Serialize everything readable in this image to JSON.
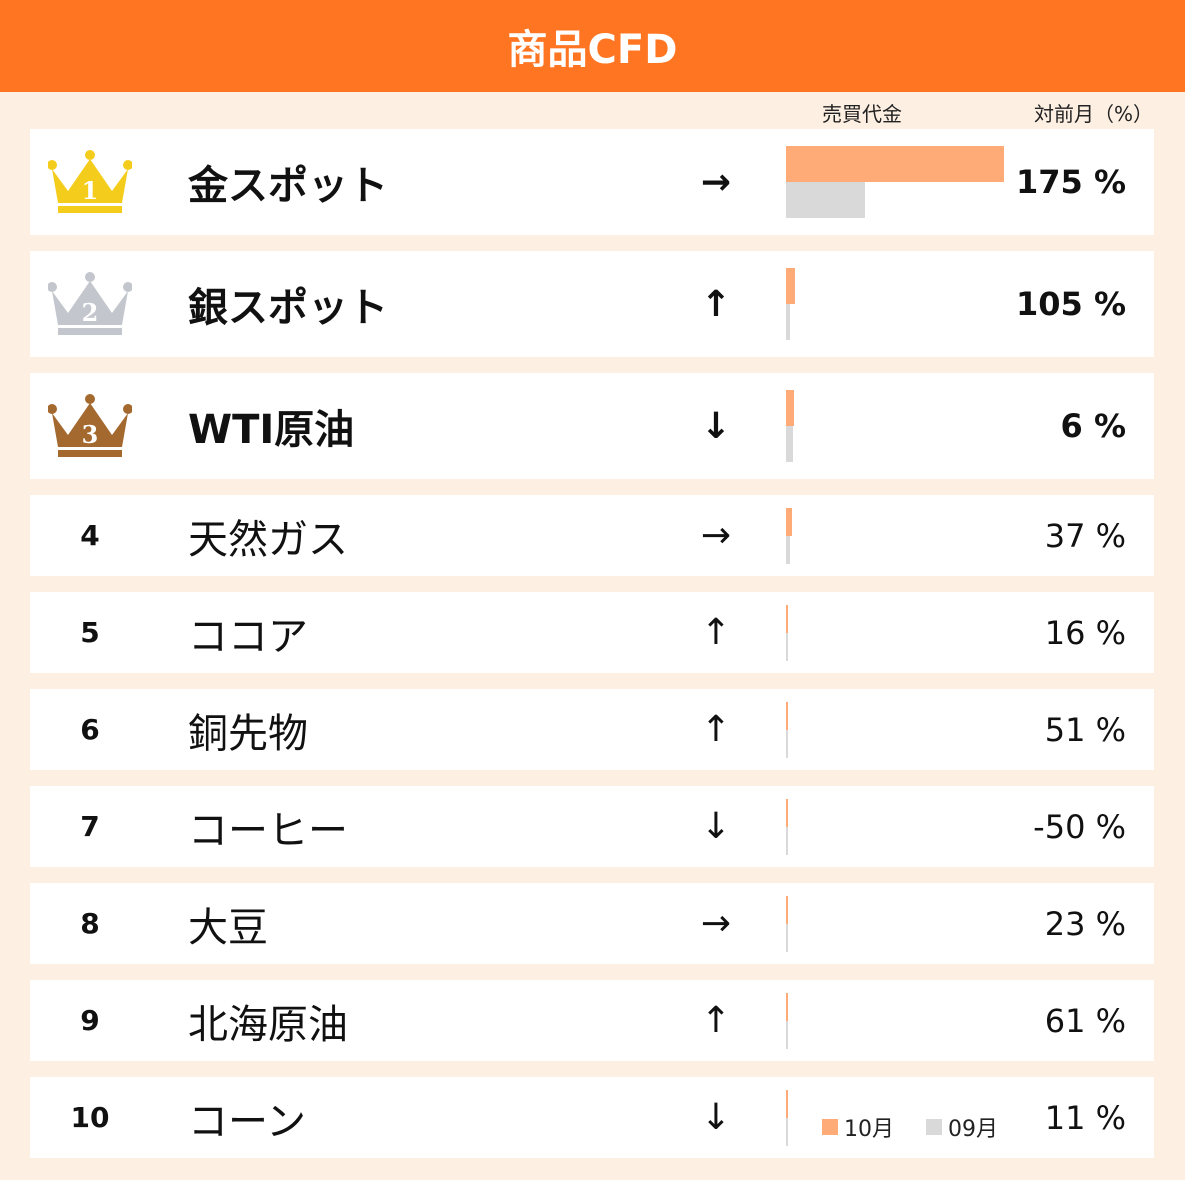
{
  "header": {
    "title": "商品CFD"
  },
  "columns": {
    "volume": "売買代金",
    "mom": "対前月（%）"
  },
  "legend": {
    "current": "10月",
    "previous": "09月"
  },
  "colors": {
    "accent": "#ff7522",
    "current_bar": "#ffab77",
    "previous_bar": "#d9d9d9",
    "gold": "#f4cd1c",
    "silver": "#c3c6cc",
    "bronze": "#a4692f"
  },
  "chart_data": {
    "type": "bar",
    "categories": [
      "金スポット",
      "銀スポット",
      "WTI原油",
      "天然ガス",
      "ココア",
      "銅先物",
      "コーヒー",
      "大豆",
      "北海原油",
      "コーン"
    ],
    "ranks": [
      "1",
      "2",
      "3",
      "4",
      "5",
      "6",
      "7",
      "8",
      "9",
      "10"
    ],
    "trend_arrows": [
      "→",
      "↑",
      "↓",
      "→",
      "↑",
      "↑",
      "↓",
      "→",
      "↑",
      "↓"
    ],
    "mom_labels": [
      "175 %",
      "105 %",
      "6 %",
      "37 %",
      "16 %",
      "51 %",
      "-50 %",
      "23 %",
      "61 %",
      "11 %"
    ],
    "series": [
      {
        "name": "10月",
        "values": [
          100,
          4,
          3.5,
          2.6,
          0.5,
          0.5,
          0.35,
          0.4,
          0.5,
          0.3
        ]
      },
      {
        "name": "09月",
        "values": [
          36.4,
          1.9,
          3.3,
          1.9,
          0.43,
          0.33,
          0.7,
          0.32,
          0.31,
          0.27
        ]
      }
    ],
    "ylim": [
      0,
      100
    ]
  }
}
